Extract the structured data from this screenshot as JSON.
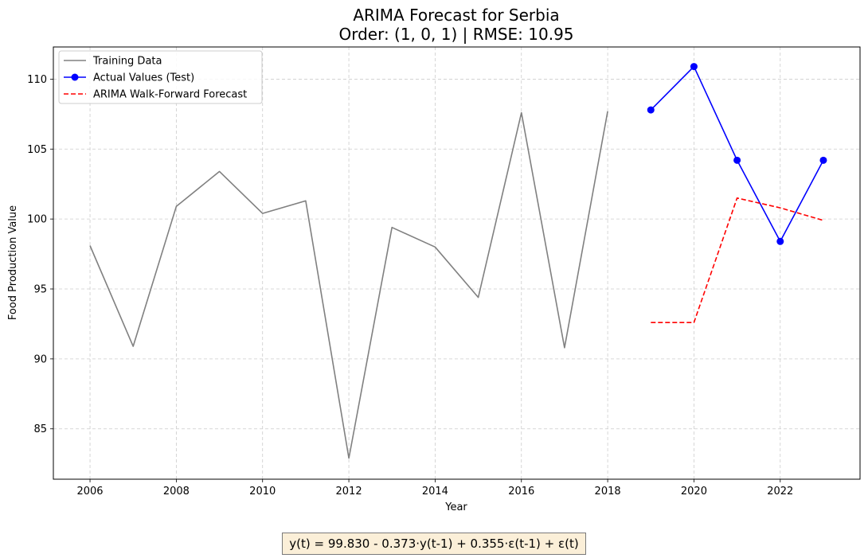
{
  "chart_data": {
    "type": "line",
    "title": "ARIMA Forecast for Serbia",
    "subtitle": "Order: (1, 0, 1) | RMSE: 10.95",
    "xlabel": "Year",
    "ylabel": "Food Production Value",
    "xlim": [
      2005.15,
      2023.85
    ],
    "ylim": [
      81.4,
      112.3
    ],
    "xticks": [
      2006,
      2008,
      2010,
      2012,
      2014,
      2016,
      2018,
      2020,
      2022
    ],
    "yticks": [
      85,
      90,
      95,
      100,
      105,
      110
    ],
    "grid": true,
    "legend_position": "top-left",
    "series": [
      {
        "name": "Training Data",
        "color": "#808080",
        "style": "solid",
        "x": [
          2006,
          2007,
          2008,
          2009,
          2010,
          2011,
          2012,
          2013,
          2014,
          2015,
          2016,
          2017,
          2018
        ],
        "y": [
          98.1,
          90.9,
          100.9,
          103.4,
          100.4,
          101.3,
          82.9,
          99.4,
          98.0,
          94.4,
          107.6,
          90.8,
          107.7
        ]
      },
      {
        "name": "Actual Values (Test)",
        "color": "#0000ff",
        "style": "solid-markers",
        "x": [
          2019,
          2020,
          2021,
          2022,
          2023
        ],
        "y": [
          107.8,
          110.9,
          104.2,
          98.4,
          104.2
        ]
      },
      {
        "name": "ARIMA Walk-Forward Forecast",
        "color": "#ff0000",
        "style": "dashed",
        "x": [
          2019,
          2020,
          2021,
          2022,
          2023
        ],
        "y": [
          92.6,
          92.6,
          101.5,
          100.8,
          99.9
        ]
      }
    ]
  },
  "equation": "y(t) = 99.830 - 0.373·y(t-1) + 0.355·ε(t-1) + ε(t)"
}
